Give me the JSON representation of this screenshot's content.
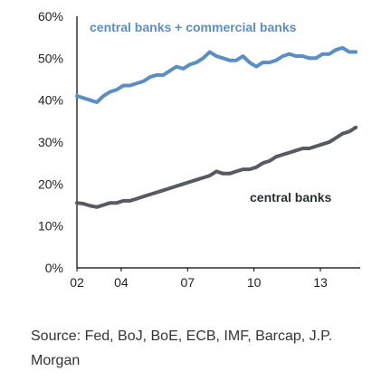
{
  "chart_data": {
    "type": "line",
    "xlabel": "",
    "ylabel": "",
    "x_tick_labels": [
      "02",
      "04",
      "07",
      "10",
      "13"
    ],
    "x_tick_years": [
      2002,
      2004,
      2007,
      2010,
      2013
    ],
    "y_tick_labels": [
      "0%",
      "10%",
      "20%",
      "30%",
      "40%",
      "50%",
      "60%"
    ],
    "y_ticks": [
      0,
      10,
      20,
      30,
      40,
      50,
      60
    ],
    "ylim": [
      0,
      60
    ],
    "xlim": [
      2002,
      2014.8
    ],
    "grid": false,
    "series": [
      {
        "name": "central banks + commercial banks",
        "color": "#5b8ec4",
        "x": [
          2002.0,
          2002.3,
          2002.6,
          2002.9,
          2003.2,
          2003.5,
          2003.8,
          2004.1,
          2004.4,
          2004.7,
          2005.0,
          2005.3,
          2005.6,
          2005.9,
          2006.2,
          2006.5,
          2006.8,
          2007.1,
          2007.4,
          2007.7,
          2008.0,
          2008.3,
          2008.6,
          2008.9,
          2009.2,
          2009.5,
          2009.8,
          2010.1,
          2010.4,
          2010.7,
          2011.0,
          2011.3,
          2011.6,
          2011.9,
          2012.2,
          2012.5,
          2012.8,
          2013.1,
          2013.4,
          2013.7,
          2014.0,
          2014.3,
          2014.6
        ],
        "values": [
          41.0,
          40.5,
          40.0,
          39.5,
          41.0,
          42.0,
          42.5,
          43.5,
          43.5,
          44.0,
          44.5,
          45.5,
          46.0,
          46.0,
          47.0,
          48.0,
          47.5,
          48.5,
          49.0,
          50.0,
          51.5,
          50.5,
          50.0,
          49.5,
          49.5,
          50.5,
          49.0,
          48.0,
          49.0,
          49.0,
          49.5,
          50.5,
          51.0,
          50.5,
          50.5,
          50.0,
          50.0,
          51.0,
          51.0,
          52.0,
          52.5,
          51.5,
          51.5
        ]
      },
      {
        "name": "central banks",
        "color": "#555b61",
        "x": [
          2002.0,
          2002.3,
          2002.6,
          2002.9,
          2003.2,
          2003.5,
          2003.8,
          2004.1,
          2004.4,
          2004.7,
          2005.0,
          2005.3,
          2005.6,
          2005.9,
          2006.2,
          2006.5,
          2006.8,
          2007.1,
          2007.4,
          2007.7,
          2008.0,
          2008.3,
          2008.6,
          2008.9,
          2009.2,
          2009.5,
          2009.8,
          2010.1,
          2010.4,
          2010.7,
          2011.0,
          2011.3,
          2011.6,
          2011.9,
          2012.2,
          2012.5,
          2012.8,
          2013.1,
          2013.4,
          2013.7,
          2014.0,
          2014.3,
          2014.6
        ],
        "values": [
          15.5,
          15.3,
          14.8,
          14.5,
          15.0,
          15.5,
          15.5,
          16.0,
          16.0,
          16.5,
          17.0,
          17.5,
          18.0,
          18.5,
          19.0,
          19.5,
          20.0,
          20.5,
          21.0,
          21.5,
          22.0,
          23.0,
          22.5,
          22.5,
          23.0,
          23.5,
          23.5,
          24.0,
          25.0,
          25.5,
          26.5,
          27.0,
          27.5,
          28.0,
          28.5,
          28.5,
          29.0,
          29.5,
          30.0,
          31.0,
          32.0,
          32.5,
          33.5
        ]
      }
    ],
    "annotations": [
      {
        "text": "central banks + commercial banks",
        "series": 0
      },
      {
        "text": "central banks",
        "series": 1
      }
    ]
  },
  "source_text": "Source: Fed, BoJ, BoE, ECB, IMF, Barcap, J.P. Morgan"
}
